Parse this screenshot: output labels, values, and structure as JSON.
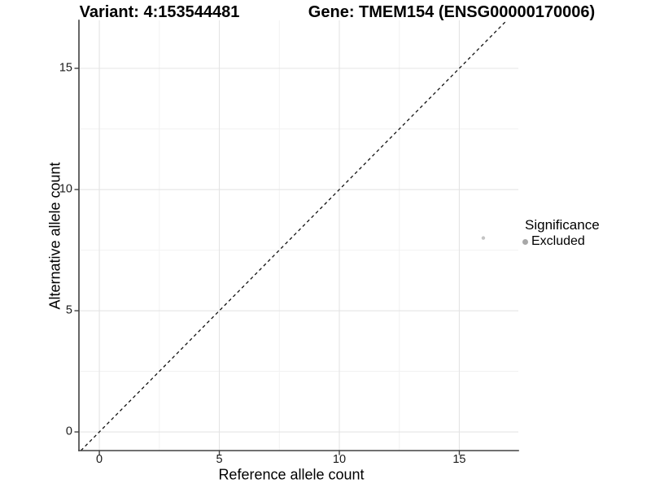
{
  "header": {
    "variant_title": "Variant: 4:153544481",
    "gene_title": "Gene: TMEM154 (ENSG00000170006)"
  },
  "chart_data": {
    "type": "scatter",
    "xlabel": "Reference allele count",
    "ylabel": "Alternative allele count",
    "xlim": [
      -0.85,
      17.46
    ],
    "ylim": [
      -0.77,
      16.98
    ],
    "x_ticks": [
      0,
      5,
      10,
      15
    ],
    "y_ticks": [
      0,
      5,
      10,
      15
    ],
    "x_minor_ticks": [
      2.5,
      7.5,
      12.5
    ],
    "y_minor_ticks": [
      2.5,
      7.5,
      12.5
    ],
    "grid": true,
    "identity_line": {
      "equation": "y = x",
      "style": "dashed",
      "color": "#111111"
    },
    "series": [
      {
        "name": "Excluded",
        "marker": "circle",
        "marker_color": "#c4c4c4",
        "marker_radius": 2.2,
        "points": [
          {
            "x": 16,
            "y": 8
          }
        ]
      }
    ],
    "legend": {
      "title": "Significance",
      "position": "right",
      "items": [
        {
          "label": "Excluded",
          "marker_color": "#a8a8a8"
        }
      ]
    }
  },
  "colors": {
    "background": "#ffffff",
    "grid_major": "#e4e4e4",
    "grid_minor": "#f1f1f1",
    "axis": "#404040",
    "text": "#000000"
  }
}
